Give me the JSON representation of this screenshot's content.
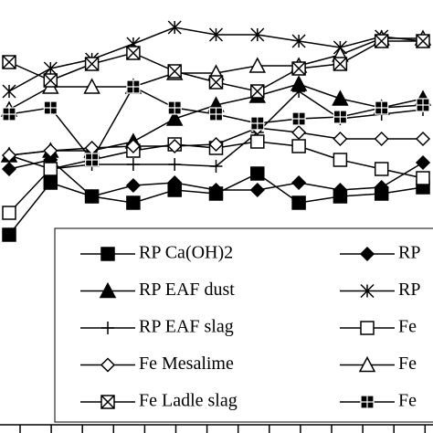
{
  "chart_data": {
    "type": "line",
    "categories": [
      null,
      null,
      null,
      null,
      null,
      null,
      null,
      null,
      null,
      null,
      null
    ],
    "ylim": [
      0,
      474
    ],
    "series": [
      {
        "name": "RP Ca(OH)2",
        "color": "#000000",
        "marker": "square",
        "values": [
          217,
          274,
          259,
          252,
          266,
          262,
          284,
          252,
          259,
          262,
          269
        ]
      },
      {
        "name": "RP",
        "color": "#000000",
        "marker": "diamond",
        "values": [
          289,
          299,
          259,
          271,
          274,
          266,
          266,
          274,
          266,
          269,
          296
        ]
      },
      {
        "name": "RP EAF dust",
        "color": "#000000",
        "marker": "triangle",
        "values": [
          304,
          309,
          309,
          319,
          344,
          359,
          369,
          382,
          366,
          356,
          366
        ]
      },
      {
        "name": "RP",
        "color": "#000000",
        "marker": "asterisk",
        "values": [
          374,
          399,
          409,
          426,
          444,
          436,
          436,
          429,
          422,
          434,
          429
        ]
      },
      {
        "name": "RP EAF slag",
        "color": "#000000",
        "marker": "plus",
        "values": [
          304,
          289,
          294,
          294,
          294,
          292,
          329,
          374,
          344,
          349,
          354
        ]
      },
      {
        "name": "Fe",
        "color": "#000000",
        "marker": "square-open",
        "values": [
          241,
          289,
          299,
          309,
          316,
          312,
          319,
          314,
          299,
          289,
          279
        ]
      },
      {
        "name": "Fe Mesalime",
        "color": "#000000",
        "marker": "diamond-open",
        "values": [
          304,
          309,
          312,
          314,
          314,
          316,
          334,
          329,
          322,
          322,
          322
        ]
      },
      {
        "name": "Fe",
        "color": "#000000",
        "marker": "triangle-open",
        "values": [
          354,
          379,
          379,
          379,
          394,
          394,
          402,
          402,
          414,
          432,
          432
        ]
      },
      {
        "name": "Fe Ladle slag",
        "color": "#000000",
        "marker": "box-x",
        "values": [
          406,
          386,
          404,
          416,
          396,
          384,
          374,
          399,
          404,
          429,
          429
        ]
      },
      {
        "name": "Fe",
        "color": "#000000",
        "marker": "box-plus",
        "values": [
          349,
          356,
          299,
          379,
          356,
          349,
          339,
          344,
          346,
          356,
          359
        ]
      }
    ]
  }
}
